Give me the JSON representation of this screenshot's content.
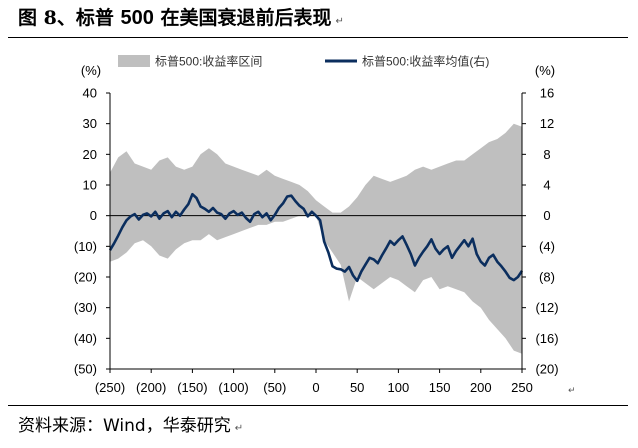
{
  "header": {
    "title_prefix": "图 8、标普 ",
    "title_number": "500",
    "title_suffix": " 在美国衰退前后表现",
    "paragraph_mark": "↵"
  },
  "footer": {
    "source": "资料来源：Wind，华泰研究",
    "paragraph_mark": "↵"
  },
  "colors": {
    "band": "#bfbfbf",
    "mean_line": "#0b2e5e",
    "zero_line": "#000000"
  },
  "chart_data": {
    "type": "area",
    "title": "",
    "left_unit": "(%)",
    "right_unit": "(%)",
    "x_ticks": [
      "(250)",
      "(200)",
      "(150)",
      "(100)",
      "(50)",
      "0",
      "50",
      "100",
      "150",
      "200",
      "250"
    ],
    "x_range": [
      -250,
      250
    ],
    "left_ticks": [
      "40",
      "30",
      "20",
      "10",
      "0",
      "(10)",
      "(20)",
      "(30)",
      "(40)",
      "(50)"
    ],
    "left_range": [
      -50,
      40
    ],
    "right_ticks": [
      "16",
      "12",
      "8",
      "4",
      "0",
      "(4)",
      "(8)",
      "(12)",
      "(16)",
      "(20)"
    ],
    "right_range": [
      -20,
      16
    ],
    "legend_position": "top",
    "series": [
      {
        "name": "标普500:收益率区间",
        "axis": "left",
        "kind": "band",
        "x": [
          -250,
          -240,
          -230,
          -220,
          -210,
          -200,
          -190,
          -180,
          -170,
          -160,
          -150,
          -140,
          -130,
          -120,
          -110,
          -100,
          -90,
          -80,
          -70,
          -60,
          -50,
          -40,
          -30,
          -20,
          -10,
          0,
          10,
          20,
          30,
          40,
          50,
          60,
          70,
          80,
          90,
          100,
          110,
          120,
          130,
          140,
          150,
          160,
          170,
          180,
          190,
          200,
          210,
          220,
          230,
          240,
          250
        ],
        "upper": [
          14,
          19,
          21,
          17,
          16,
          15,
          18,
          19,
          16,
          15,
          16,
          20,
          22,
          20,
          17,
          16,
          15,
          14,
          13,
          15,
          13,
          12,
          11,
          10,
          8,
          5,
          3,
          1,
          1,
          3,
          6,
          10,
          13,
          12,
          11,
          12,
          13,
          15,
          16,
          15,
          16,
          17,
          18,
          18,
          20,
          22,
          24,
          25,
          27,
          30,
          29
        ],
        "lower": [
          -15,
          -14,
          -12,
          -9,
          -8,
          -10,
          -13,
          -14,
          -11,
          -9,
          -8,
          -8,
          -6,
          -8,
          -7,
          -6,
          -5,
          -4,
          -3,
          -3,
          -2,
          -2,
          -1,
          0,
          0,
          0,
          -8,
          -12,
          -16,
          -28,
          -20,
          -22,
          -24,
          -22,
          -20,
          -21,
          -23,
          -25,
          -21,
          -20,
          -24,
          -23,
          -24,
          -25,
          -28,
          -30,
          -34,
          -37,
          -40,
          -44,
          -45
        ]
      },
      {
        "name": "标普500:收益率均值(右)",
        "axis": "right",
        "kind": "line",
        "x": [
          -250,
          -245,
          -240,
          -235,
          -230,
          -225,
          -220,
          -215,
          -210,
          -205,
          -200,
          -195,
          -190,
          -185,
          -180,
          -175,
          -170,
          -165,
          -160,
          -155,
          -150,
          -145,
          -140,
          -135,
          -130,
          -125,
          -120,
          -115,
          -110,
          -105,
          -100,
          -95,
          -90,
          -85,
          -80,
          -75,
          -70,
          -65,
          -60,
          -55,
          -50,
          -45,
          -40,
          -35,
          -30,
          -25,
          -20,
          -15,
          -10,
          -5,
          0,
          5,
          10,
          15,
          20,
          25,
          30,
          35,
          40,
          45,
          50,
          55,
          60,
          65,
          70,
          75,
          80,
          85,
          90,
          95,
          100,
          105,
          110,
          115,
          120,
          125,
          130,
          135,
          140,
          145,
          150,
          155,
          160,
          165,
          170,
          175,
          180,
          185,
          190,
          195,
          200,
          205,
          210,
          215,
          220,
          225,
          230,
          235,
          240,
          245,
          250
        ],
        "values": [
          -4.5,
          -3.6,
          -2.6,
          -1.5,
          -0.6,
          -0.1,
          0.2,
          -0.5,
          0.1,
          0.3,
          -0.1,
          0.5,
          -0.4,
          0.3,
          0.6,
          -0.2,
          0.5,
          0.0,
          0.8,
          1.5,
          2.8,
          2.3,
          1.2,
          0.9,
          0.5,
          1.0,
          0.4,
          0.2,
          -0.4,
          0.3,
          0.6,
          0.1,
          0.4,
          -0.3,
          -0.8,
          0.2,
          0.5,
          -0.2,
          0.3,
          -0.6,
          0.1,
          1.0,
          1.6,
          2.5,
          2.6,
          1.9,
          1.3,
          0.9,
          -0.1,
          0.5,
          0.0,
          -0.6,
          -3.4,
          -4.8,
          -6.6,
          -6.9,
          -7.0,
          -7.3,
          -6.7,
          -7.8,
          -8.5,
          -7.3,
          -6.4,
          -5.5,
          -5.7,
          -6.2,
          -5.2,
          -4.3,
          -3.3,
          -3.8,
          -3.2,
          -2.7,
          -3.8,
          -5.0,
          -6.5,
          -5.5,
          -4.7,
          -4.0,
          -3.1,
          -4.3,
          -5.0,
          -4.4,
          -4.0,
          -5.5,
          -4.6,
          -3.9,
          -3.2,
          -4.0,
          -3.0,
          -5.0,
          -6.0,
          -6.5,
          -5.5,
          -5.1,
          -6.0,
          -6.6,
          -7.3,
          -8.1,
          -8.4,
          -8.0,
          -7.2
        ]
      }
    ]
  }
}
